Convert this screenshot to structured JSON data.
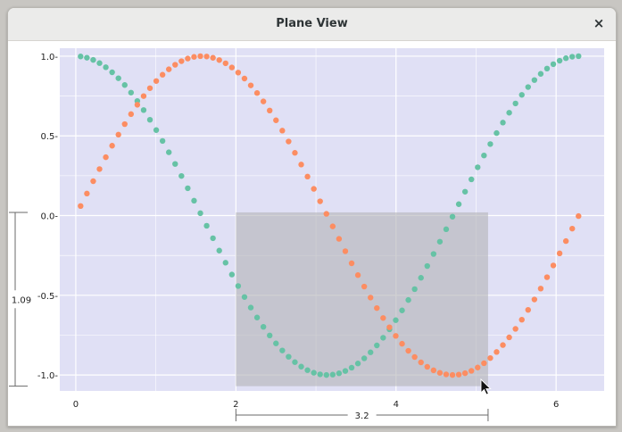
{
  "window": {
    "title": "Plane View",
    "close_glyph": "×"
  },
  "colors": {
    "plot_bg": "#e0e0f5",
    "grid": "#ffffff",
    "series_cos": "#66c2a5",
    "series_sin": "#fc8d62",
    "selection": "#b4b4b8"
  },
  "icons": {
    "close": "close-icon",
    "cursor": "mouse-pointer-icon"
  },
  "chart_data": {
    "type": "scatter",
    "title": "",
    "xlabel": "",
    "ylabel": "",
    "xlim": [
      -0.2,
      6.6
    ],
    "ylim": [
      -1.1,
      1.05
    ],
    "x_ticks": [
      0,
      2,
      4,
      6
    ],
    "y_ticks": [
      1.0,
      0.5,
      0.0,
      -0.5,
      -1.0
    ],
    "x_tick_labels": [
      "0",
      "2",
      "4",
      "6"
    ],
    "y_tick_labels": [
      "1.0-",
      "0.5-",
      "0.0-",
      "-0.5-",
      "-1.0-"
    ],
    "grid": true,
    "series": [
      {
        "function": "cos(x)",
        "x_range": [
          0.06,
          6.28
        ],
        "points": 80,
        "color": "#66c2a5"
      },
      {
        "function": "sin(x)",
        "x_range": [
          0.06,
          6.28
        ],
        "points": 80,
        "color": "#fc8d62"
      }
    ],
    "selection": {
      "x_range": [
        2.0,
        5.15
      ],
      "y_range": [
        -1.07,
        0.02
      ]
    },
    "measurements": {
      "width_label": "3.2",
      "height_label": "1.09"
    }
  }
}
